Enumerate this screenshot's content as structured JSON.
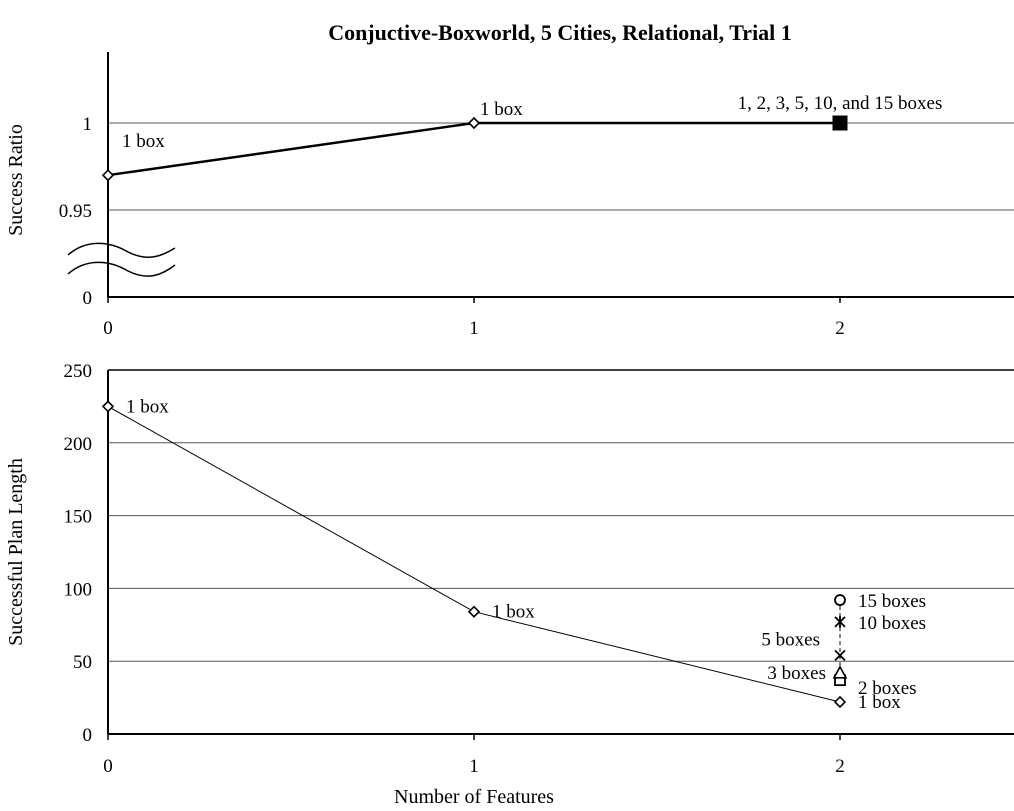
{
  "figure_title": "Conjuctive-Boxworld, 5 Cities, Relational, Trial 1",
  "chart_data": [
    {
      "type": "line",
      "title": "Conjuctive-Boxworld, 5 Cities, Relational, Trial 1",
      "xlabel": "",
      "ylabel": "Success Ratio",
      "x_ticks": [
        0,
        1,
        2
      ],
      "y_ticks": [
        {
          "value": 0,
          "label": "0"
        },
        {
          "value": 0.95,
          "label": "0.95"
        },
        {
          "value": 1,
          "label": "1"
        }
      ],
      "broken_y_axis": {
        "from": 0,
        "to": 0.9
      },
      "grid": true,
      "series": [
        {
          "marker": "diamond",
          "x": [
            0,
            1
          ],
          "y": [
            0.97,
            1
          ]
        },
        {
          "marker": "square",
          "x": [
            2
          ],
          "y": [
            1
          ]
        }
      ],
      "annotations": [
        {
          "text": "1 box",
          "x": 0,
          "y": 0.97
        },
        {
          "text": "1 box",
          "x": 1,
          "y": 1
        },
        {
          "text": "1, 2, 3, 5, 10, and 15 boxes",
          "x": 2,
          "y": 1
        }
      ]
    },
    {
      "type": "line",
      "title": "",
      "xlabel": "Number of Features",
      "ylabel": "Successful Plan Length",
      "x_ticks": [
        0,
        1,
        2
      ],
      "y_ticks": [
        0,
        50,
        100,
        150,
        200,
        250
      ],
      "ylim": [
        0,
        250
      ],
      "grid": true,
      "series": [
        {
          "marker": "diamond",
          "x": [
            0,
            1,
            2
          ],
          "y": [
            225,
            84,
            22
          ]
        }
      ],
      "points_at_2_features": [
        {
          "marker": "diamond",
          "x": 2,
          "y": 22,
          "label": "1 box"
        },
        {
          "marker": "square",
          "x": 2,
          "y": 37,
          "label": "2 boxes"
        },
        {
          "marker": "triangle",
          "x": 2,
          "y": 42,
          "label": "3 boxes"
        },
        {
          "marker": "x",
          "x": 2,
          "y": 54,
          "label": "5 boxes"
        },
        {
          "marker": "star",
          "x": 2,
          "y": 77,
          "label": "10 boxes"
        },
        {
          "marker": "circle",
          "x": 2,
          "y": 92,
          "label": "15 boxes"
        }
      ],
      "dashed_connector": {
        "x": 2,
        "y_from": 37,
        "y_to": 92
      },
      "annotations": [
        {
          "text": "1 box",
          "x": 0,
          "y": 225
        },
        {
          "text": "1 box",
          "x": 1,
          "y": 84
        }
      ]
    }
  ]
}
